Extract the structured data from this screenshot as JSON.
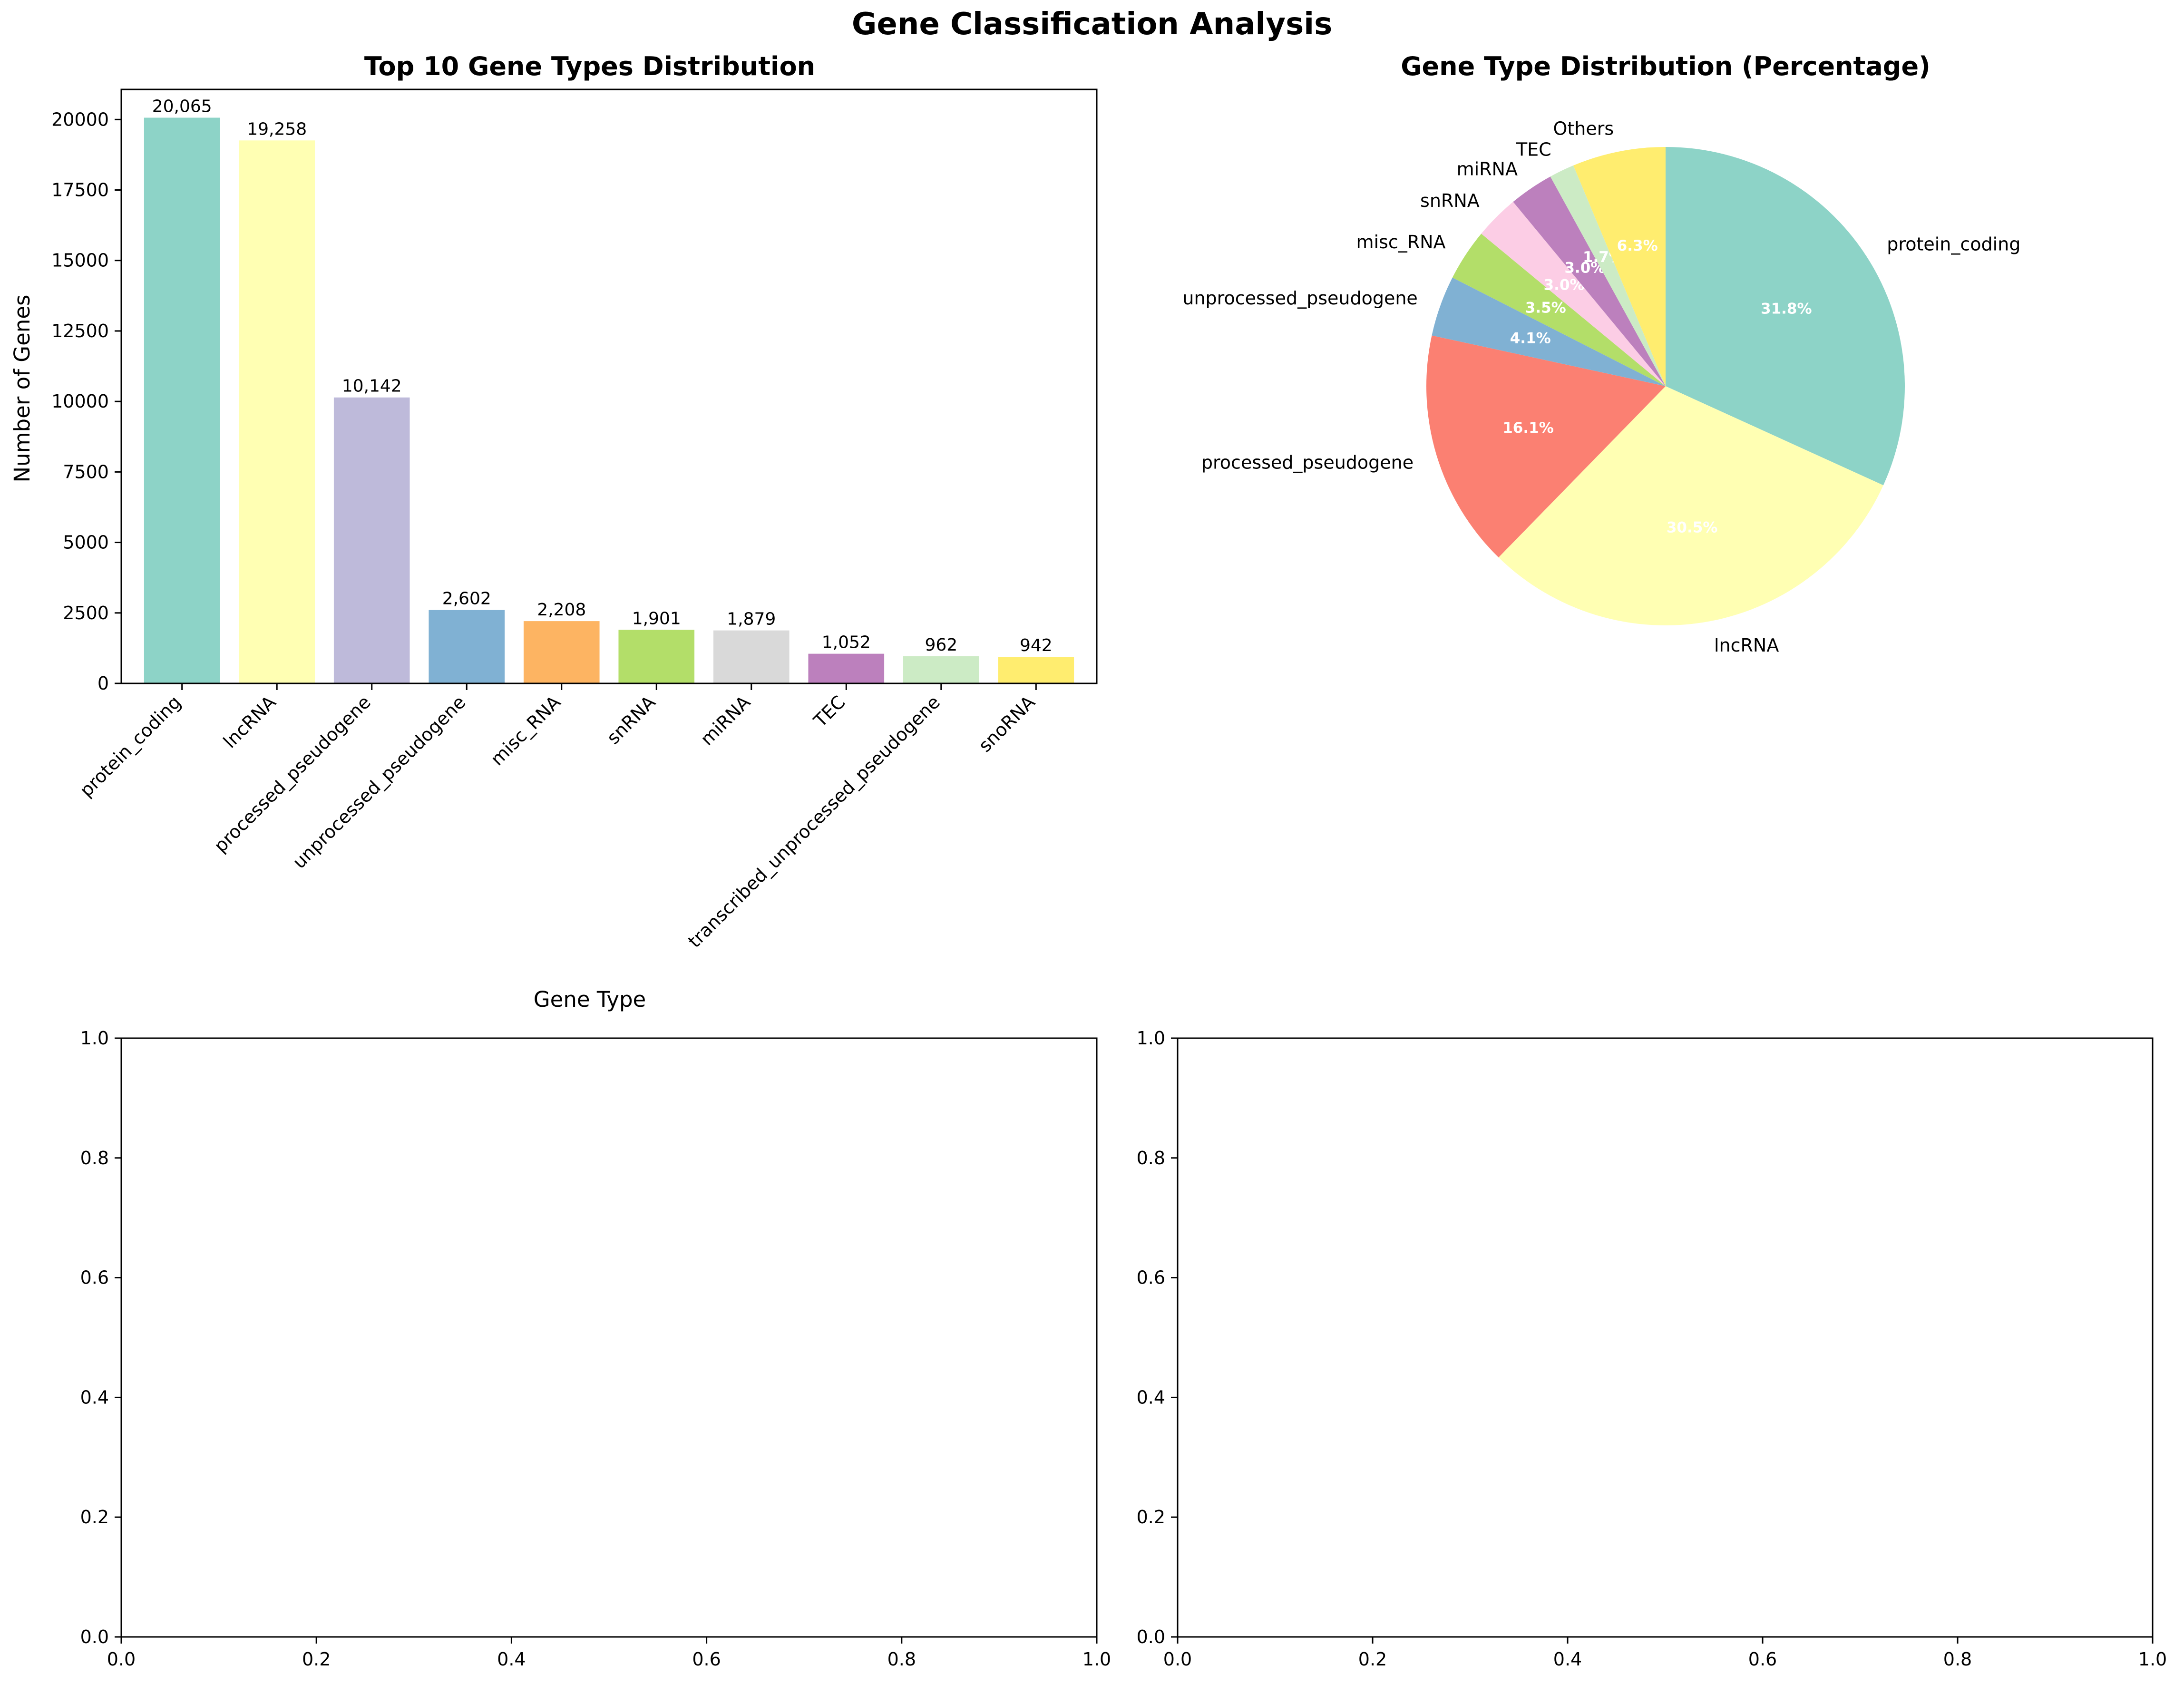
{
  "figure": {
    "title": "Gene Classification Analysis"
  },
  "chart_data": [
    {
      "type": "bar",
      "title": "Top 10 Gene Types Distribution",
      "xlabel": "Gene Type",
      "ylabel": "Number of Genes",
      "ylim": [
        0,
        21068
      ],
      "yticks": [
        0,
        2500,
        5000,
        7500,
        10000,
        12500,
        15000,
        17500,
        20000
      ],
      "categories": [
        "protein_coding",
        "lncRNA",
        "processed_pseudogene",
        "unprocessed_pseudogene",
        "misc_RNA",
        "snRNA",
        "miRNA",
        "TEC",
        "transcribed_unprocessed_pseudogene",
        "snoRNA"
      ],
      "values": [
        20065,
        19258,
        10142,
        2602,
        2208,
        1901,
        1879,
        1052,
        962,
        942
      ],
      "value_labels": [
        "20,065",
        "19,258",
        "10,142",
        "2,602",
        "2,208",
        "1,901",
        "1,879",
        "1,052",
        "962",
        "942"
      ],
      "colors": [
        "#8dd3c7",
        "#ffffb3",
        "#bebada",
        "#80b1d3",
        "#fdb462",
        "#b3de69",
        "#d9d9d9",
        "#bc80bd",
        "#ccebc5",
        "#ffed6f"
      ],
      "grid": false
    },
    {
      "type": "pie",
      "title": "Gene Type Distribution (Percentage)",
      "labels": [
        "protein_coding",
        "lncRNA",
        "processed_pseudogene",
        "unprocessed_pseudogene",
        "misc_RNA",
        "snRNA",
        "miRNA",
        "TEC",
        "Others"
      ],
      "values": [
        31.8,
        30.5,
        16.1,
        4.1,
        3.5,
        3.0,
        3.0,
        1.7,
        6.3
      ],
      "pct_labels": [
        "31.8%",
        "30.5%",
        "16.1%",
        "4.1%",
        "3.5%",
        "3.0%",
        "3.0%",
        "1.7%",
        "6.3%"
      ],
      "colors": [
        "#8dd3c7",
        "#ffffb3",
        "#fb8072",
        "#80b1d3",
        "#b3de69",
        "#fccde5",
        "#bc80bd",
        "#ccebc5",
        "#ffed6f"
      ],
      "start_angle": 90,
      "direction": "clockwise"
    },
    {
      "type": "empty",
      "xlim": [
        0,
        1
      ],
      "ylim": [
        0,
        1
      ],
      "xticks": [
        "0.0",
        "0.2",
        "0.4",
        "0.6",
        "0.8",
        "1.0"
      ],
      "yticks": [
        "0.0",
        "0.2",
        "0.4",
        "0.6",
        "0.8",
        "1.0"
      ]
    },
    {
      "type": "empty",
      "xlim": [
        0,
        1
      ],
      "ylim": [
        0,
        1
      ],
      "xticks": [
        "0.0",
        "0.2",
        "0.4",
        "0.6",
        "0.8",
        "1.0"
      ],
      "yticks": [
        "0.0",
        "0.2",
        "0.4",
        "0.6",
        "0.8",
        "1.0"
      ]
    }
  ]
}
